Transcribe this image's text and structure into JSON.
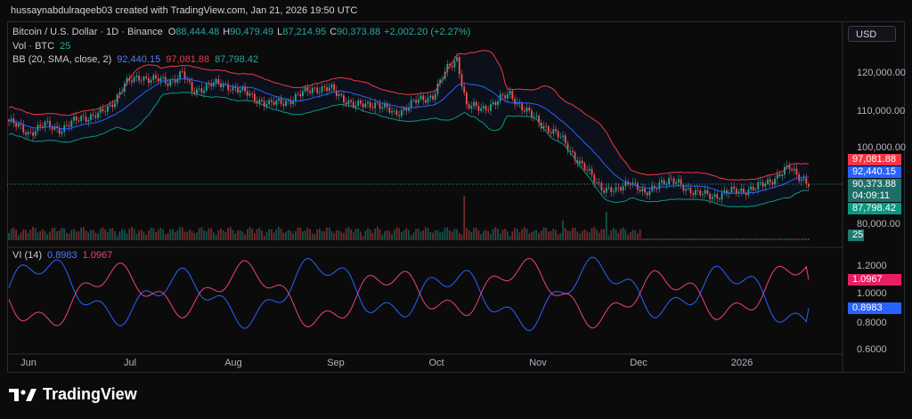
{
  "header": {
    "text": "hussaynabdulraqeeb03 created with TradingView.com, Jan 21, 2026 19:50 UTC"
  },
  "legend": {
    "symbol": "Bitcoin / U.S. Dollar · 1D · Binance",
    "ohlc": [
      {
        "k": "O",
        "v": "88,444.48"
      },
      {
        "k": "H",
        "v": "90,479.49"
      },
      {
        "k": "L",
        "v": "87,214.95"
      },
      {
        "k": "C",
        "v": "90,373.88"
      },
      {
        "k": "",
        "v": "+2,002.20 (+2.27%)"
      }
    ],
    "vol_label": "Vol · BTC",
    "vol_value": "25",
    "bb_label": "BB (20, SMA, close, 2)",
    "bb_basis": "92,440.15",
    "bb_upper": "97,081.88",
    "bb_lower": "87,798.42",
    "vi_label": "VI (14)",
    "vi_plus": "0.8983",
    "vi_minus": "1.0967"
  },
  "currency": "USD",
  "price_axis": {
    "ticks": [
      "120,000.00",
      "110,000.00",
      "100,000.00",
      "80,000.00"
    ]
  },
  "price_tags": {
    "upper": "97,081.88",
    "basis": "92,440.15",
    "close": "90,373.88",
    "countdown": "04:09:11",
    "lower": "87,798.42",
    "volume": "25"
  },
  "vi_axis": {
    "ticks": [
      "1.2000",
      "1.0000",
      "0.8000",
      "0.6000"
    ]
  },
  "vi_tags": {
    "minus": "1.0967",
    "plus": "0.8983"
  },
  "time_axis": [
    "Jun",
    "Jul",
    "Aug",
    "Sep",
    "Oct",
    "Nov",
    "Dec",
    "2026"
  ],
  "brand": "TradingView",
  "colors": {
    "up": "#26a69a",
    "down": "#ef5350",
    "bb_basis": "#2962ff",
    "bb_upper": "#f23645",
    "bb_lower": "#089981",
    "vi_plus": "#2962ff",
    "vi_minus": "#f0407a"
  }
}
